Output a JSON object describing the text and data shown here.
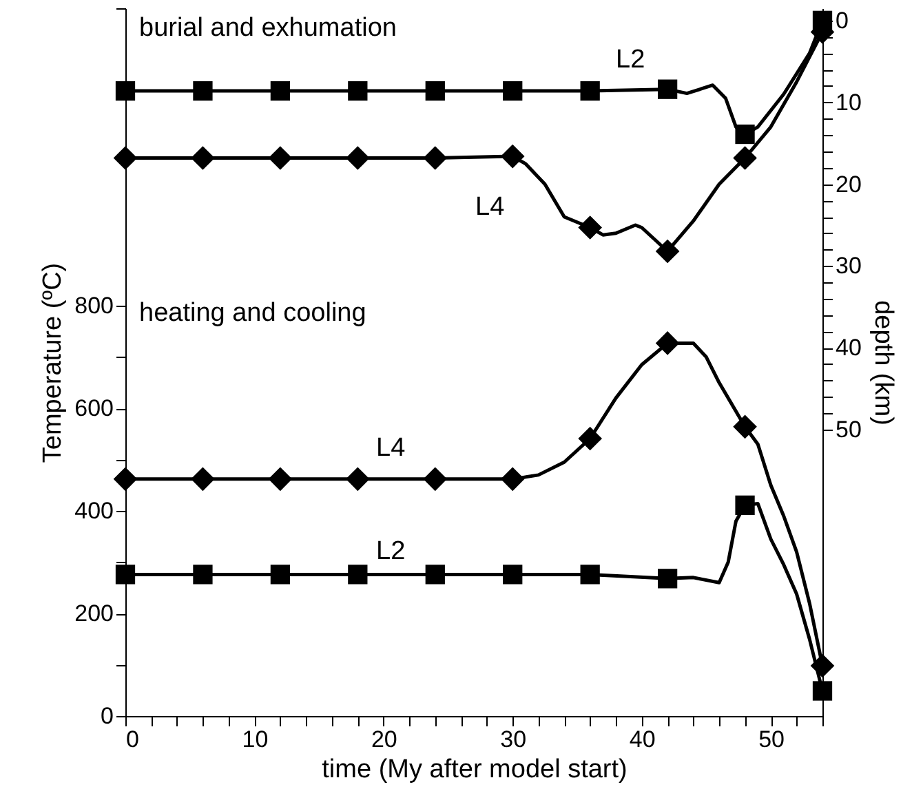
{
  "chart_data": {
    "type": "line",
    "xlabel": "time (My after model start)",
    "ylabel": "Temperature (ºC)",
    "y2label": "depth (km)",
    "xlim": [
      0,
      54
    ],
    "xticks": [
      0,
      {
        "value": 2,
        "label": null
      },
      {
        "value": 4,
        "label": null
      },
      {
        "value": 6,
        "label": null
      },
      {
        "value": 8,
        "label": null
      },
      10,
      {
        "value": 12,
        "label": null
      },
      {
        "value": 14,
        "label": null
      },
      {
        "value": 16,
        "label": null
      },
      {
        "value": 18,
        "label": null
      },
      20,
      {
        "value": 22,
        "label": null
      },
      {
        "value": 24,
        "label": null
      },
      {
        "value": 26,
        "label": null
      },
      {
        "value": 28,
        "label": null
      },
      30,
      {
        "value": 32,
        "label": null
      },
      {
        "value": 34,
        "label": null
      },
      {
        "value": 36,
        "label": null
      },
      {
        "value": 38,
        "label": null
      },
      40,
      {
        "value": 42,
        "label": null
      },
      {
        "value": 44,
        "label": null
      },
      {
        "value": 46,
        "label": null
      },
      {
        "value": 48,
        "label": null
      },
      50,
      {
        "value": 52,
        "label": null
      },
      {
        "value": 54,
        "label": null
      }
    ],
    "ylim": [
      0,
      1380
    ],
    "yticks": [
      0,
      {
        "value": 100,
        "label": null
      },
      200,
      {
        "value": 300,
        "label": null
      },
      400,
      {
        "value": 500,
        "label": null
      },
      600,
      {
        "value": 700,
        "label": null
      },
      800,
      {
        "value": 1380,
        "label": null
      }
    ],
    "y2lim": [
      85,
      -1.5
    ],
    "y2ticks": [
      0,
      {
        "value": 2,
        "label": null
      },
      {
        "value": 4,
        "label": null
      },
      {
        "value": 6,
        "label": null
      },
      {
        "value": 8,
        "label": null
      },
      10,
      {
        "value": 12,
        "label": null
      },
      {
        "value": 14,
        "label": null
      },
      {
        "value": 16,
        "label": null
      },
      {
        "value": 18,
        "label": null
      },
      20,
      {
        "value": 22,
        "label": null
      },
      {
        "value": 24,
        "label": null
      },
      {
        "value": 26,
        "label": null
      },
      {
        "value": 28,
        "label": null
      },
      30,
      {
        "value": 32,
        "label": null
      },
      {
        "value": 34,
        "label": null
      },
      {
        "value": 36,
        "label": null
      },
      {
        "value": 38,
        "label": null
      },
      40,
      {
        "value": 42,
        "label": null
      },
      {
        "value": 44,
        "label": null
      },
      {
        "value": 46,
        "label": null
      },
      {
        "value": 48,
        "label": null
      },
      50
    ],
    "grid": false,
    "series": [
      {
        "axis": "y2",
        "marker": "none",
        "color": "#000000",
        "x": [
          0,
          6,
          12,
          18,
          24,
          30,
          36,
          42,
          43.5,
          45.5,
          46.5,
          47.3,
          48,
          49,
          51,
          53,
          54
        ],
        "values": [
          8.6,
          8.6,
          8.6,
          8.6,
          8.6,
          8.6,
          8.6,
          8.4,
          8.9,
          7.9,
          9.5,
          13,
          13.9,
          13,
          9,
          4,
          0
        ]
      },
      {
        "axis": "y2",
        "marker": "none",
        "color": "#000000",
        "x": [
          0,
          6,
          12,
          18,
          24,
          30,
          31,
          32.5,
          34,
          36,
          37,
          38,
          39.5,
          40,
          42,
          44,
          46,
          48,
          50,
          52,
          54
        ],
        "values": [
          16.8,
          16.8,
          16.8,
          16.8,
          16.8,
          16.6,
          17.5,
          20,
          24,
          25.3,
          26.2,
          26,
          25,
          25.3,
          28.2,
          24.5,
          20,
          16.8,
          13,
          7.5,
          1.4
        ]
      },
      {
        "marker": "none",
        "color": "#000000",
        "x": [
          0,
          6,
          12,
          18,
          24,
          30,
          32,
          34,
          36,
          38,
          40,
          42,
          44,
          45,
          46,
          48,
          49,
          50,
          51,
          52,
          53,
          54
        ],
        "values": [
          462,
          462,
          462,
          462,
          462,
          462,
          470,
          495,
          541,
          620,
          685,
          727,
          727,
          700,
          650,
          564,
          530,
          450,
          390,
          320,
          220,
          98
        ]
      },
      {
        "marker": "none",
        "color": "#000000",
        "x": [
          0,
          6,
          12,
          18,
          24,
          30,
          36,
          42,
          44,
          46,
          46.7,
          47.3,
          48,
          49,
          50,
          51,
          52,
          53,
          54
        ],
        "values": [
          276,
          276,
          276,
          276,
          276,
          276,
          276,
          268,
          270,
          260,
          300,
          380,
          411,
          414,
          345,
          295,
          238,
          150,
          49
        ]
      },
      {
        "type": "scatter",
        "axis": "y2",
        "marker": "square",
        "color": "#000000",
        "x": [
          0,
          6,
          12,
          18,
          24,
          30,
          36,
          42,
          48,
          54
        ],
        "values": [
          8.6,
          8.6,
          8.6,
          8.6,
          8.6,
          8.6,
          8.6,
          8.4,
          13.9,
          0
        ]
      },
      {
        "type": "scatter",
        "axis": "y2",
        "marker": "diamond",
        "color": "#000000",
        "x": [
          0,
          6,
          12,
          18,
          24,
          30,
          36,
          42,
          48,
          54
        ],
        "values": [
          16.8,
          16.8,
          16.8,
          16.8,
          16.8,
          16.6,
          25.3,
          28.2,
          16.8,
          1.4
        ]
      },
      {
        "type": "scatter",
        "marker": "diamond",
        "color": "#000000",
        "x": [
          0,
          6,
          12,
          18,
          24,
          30,
          36,
          42,
          48,
          54
        ],
        "values": [
          462,
          462,
          462,
          462,
          462,
          462,
          541,
          727,
          564,
          98
        ]
      },
      {
        "type": "scatter",
        "marker": "square",
        "color": "#000000",
        "x": [
          0,
          6,
          12,
          18,
          24,
          30,
          36,
          42,
          48,
          54
        ],
        "values": [
          276,
          276,
          276,
          276,
          276,
          276,
          276,
          268,
          411,
          49
        ]
      }
    ],
    "annotations": [
      "burial and exhumation",
      "heating and cooling",
      "L2",
      "L4",
      "L4",
      "L2"
    ]
  }
}
